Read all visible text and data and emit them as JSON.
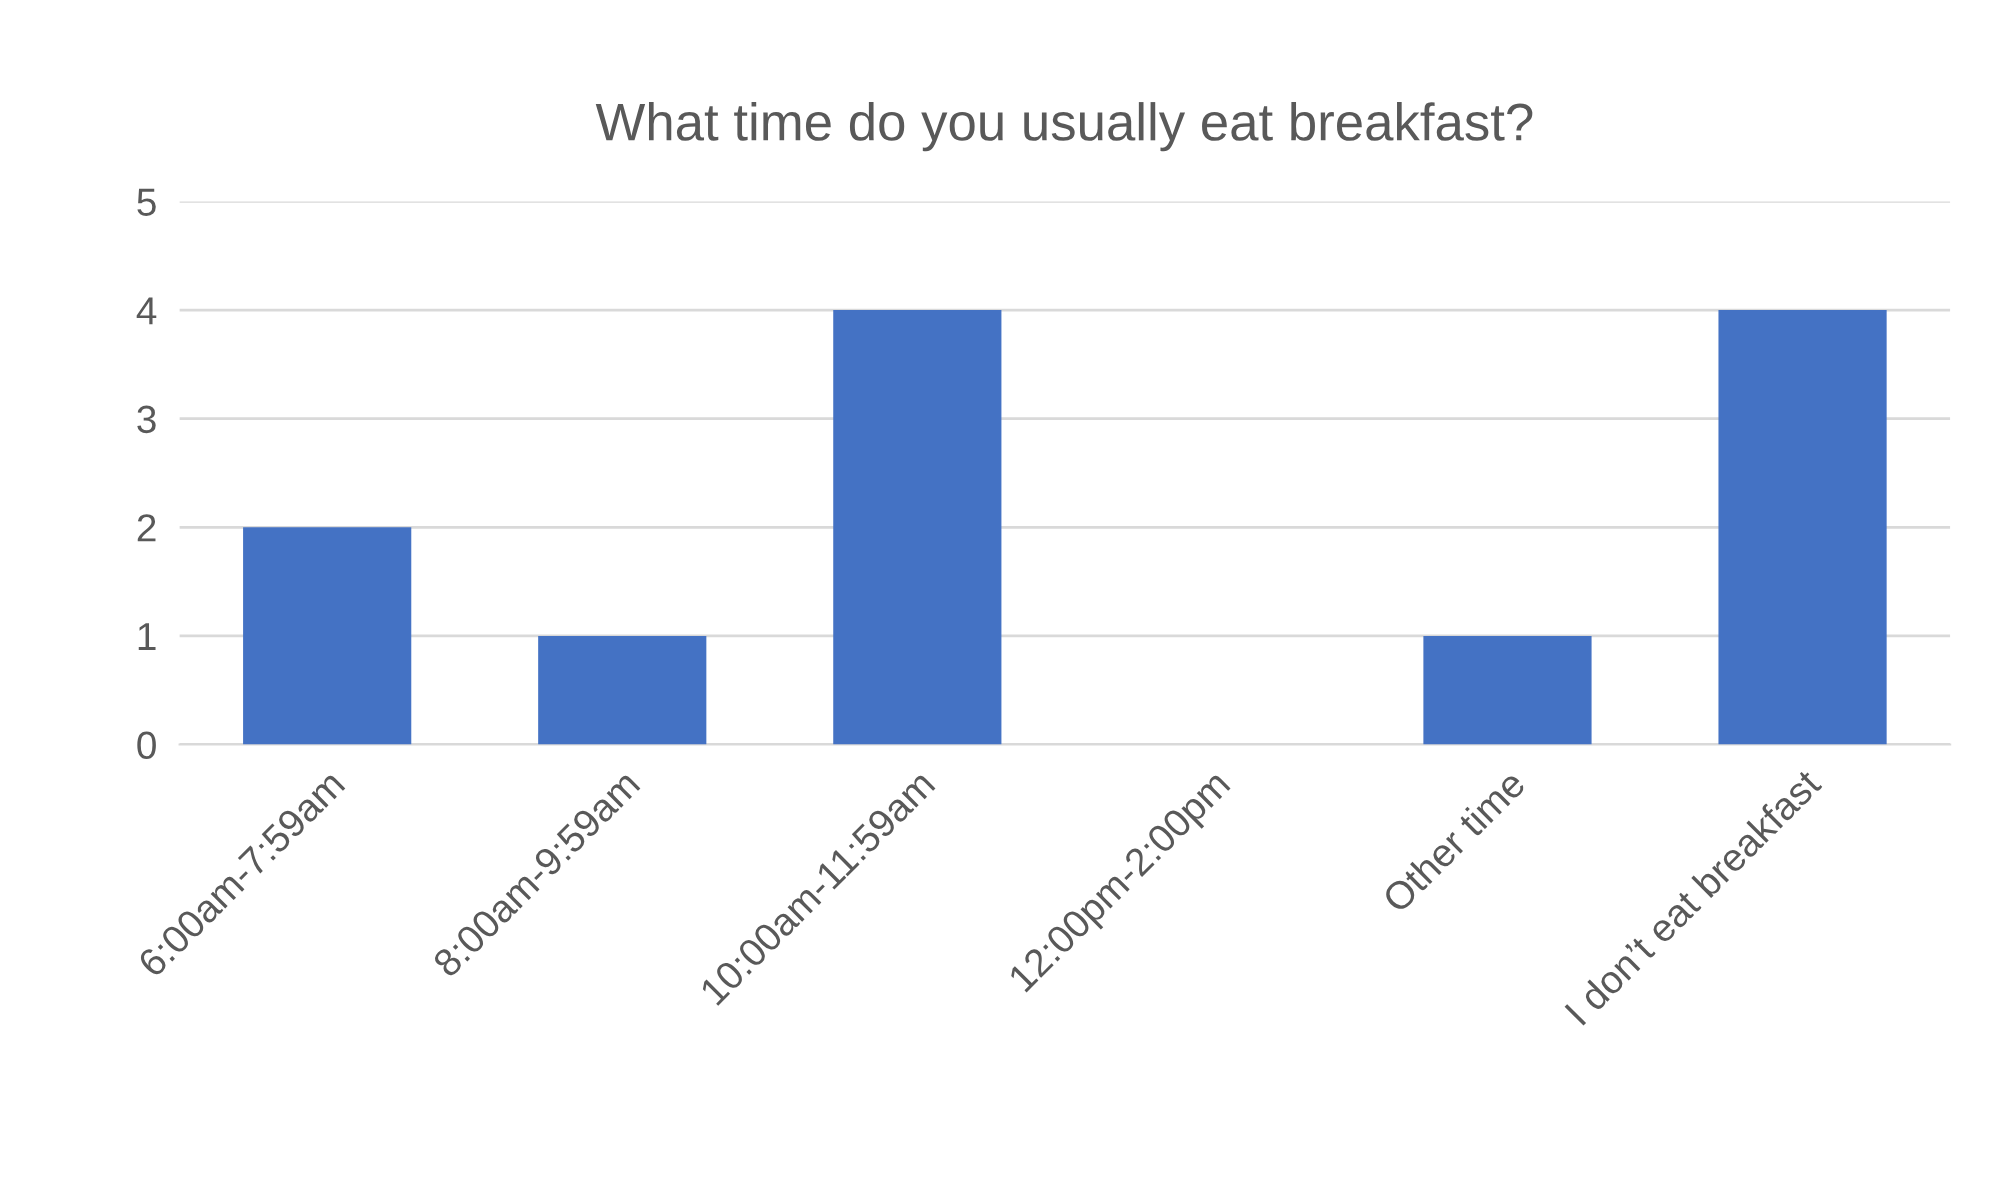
{
  "chart_data": {
    "type": "bar",
    "title": "What time do you usually eat breakfast?",
    "categories": [
      "6:00am-7:59am",
      "8:00am-9:59am",
      "10:00am-11:59am",
      "12:00pm-2:00pm",
      "Other time",
      "I don’t eat breakfast"
    ],
    "values": [
      2,
      1,
      4,
      0,
      1,
      4
    ],
    "color": "#4472c4",
    "ylim": [
      0,
      5
    ],
    "yticks": [
      0,
      1,
      2,
      3,
      4,
      5
    ],
    "grid": "y",
    "legend": false
  }
}
